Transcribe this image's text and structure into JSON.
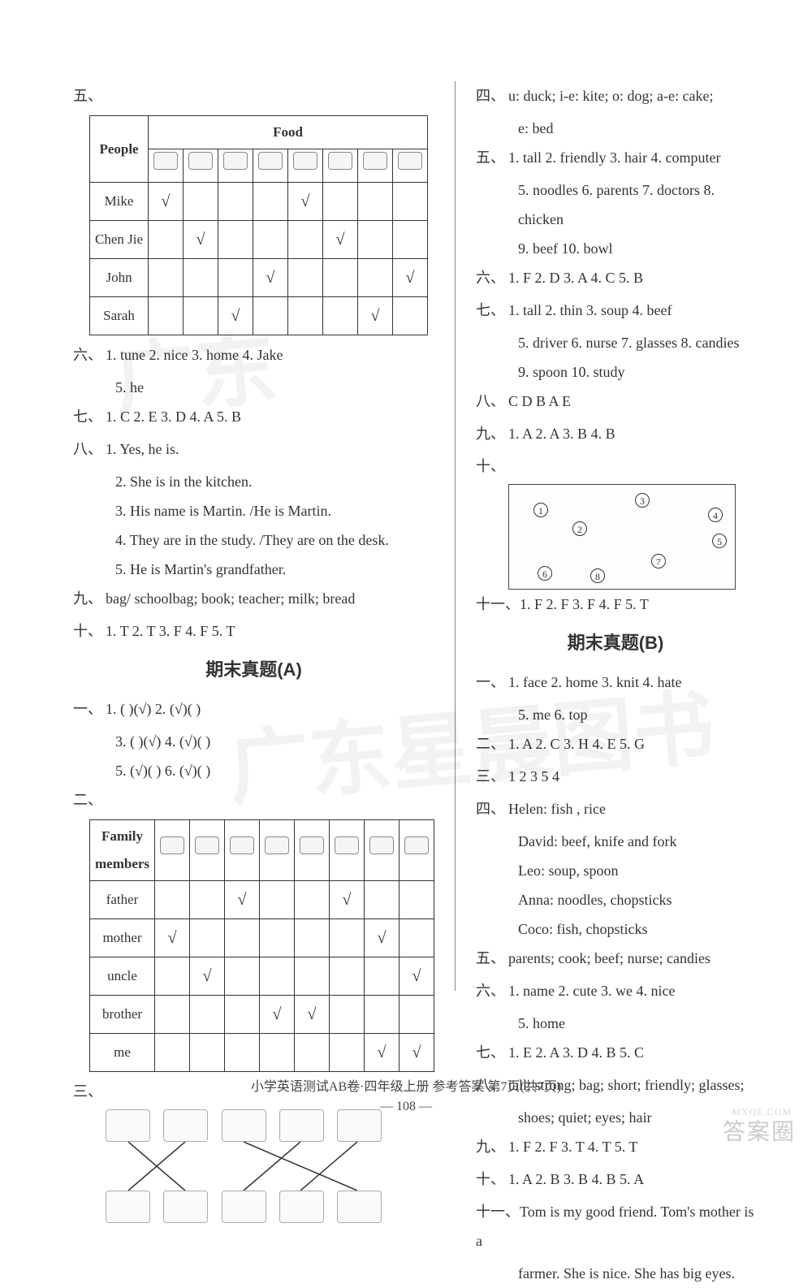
{
  "left": {
    "s5_label": "五、",
    "table1": {
      "header_people": "People",
      "header_food": "Food",
      "rows": [
        "Mike",
        "Chen Jie",
        "John",
        "Sarah"
      ],
      "checks": [
        [
          true,
          false,
          false,
          false,
          true,
          false,
          false,
          false
        ],
        [
          false,
          true,
          false,
          false,
          false,
          true,
          false,
          false
        ],
        [
          false,
          false,
          false,
          true,
          false,
          false,
          false,
          true
        ],
        [
          false,
          false,
          true,
          false,
          false,
          false,
          true,
          false
        ]
      ]
    },
    "s6_label": "六、",
    "s6_line1": "1. tune  2. nice  3. home  4. Jake",
    "s6_line2": "5. he",
    "s7_label": "七、",
    "s7_text": "1. C  2. E  3. D  4. A  5. B",
    "s8_label": "八、",
    "s8_1": "1. Yes, he is.",
    "s8_2": "2. She is in the kitchen.",
    "s8_3": "3. His name is Martin. /He is Martin.",
    "s8_4": "4. They are in the study. /They are on the desk.",
    "s8_5": "5. He is Martin's grandfather.",
    "s9_label": "九、",
    "s9_text": "bag/ schoolbag; book; teacher; milk; bread",
    "s10_label": "十、",
    "s10_text": "1. T  2. T  3. F  4. F  5. T",
    "titleA": "期末真题(A)",
    "a1_label": "一、",
    "a1_l1": "1. (  )(√)  2. (√)(  )",
    "a1_l2": "3. (  )(√)  4. (√)(  )",
    "a1_l3": "5. (√)(  )  6. (√)(  )",
    "a2_label": "二、",
    "table2": {
      "header": "Family members",
      "rows": [
        "father",
        "mother",
        "uncle",
        "brother",
        "me"
      ],
      "checks": [
        [
          false,
          false,
          true,
          false,
          false,
          true,
          false,
          false
        ],
        [
          true,
          false,
          false,
          false,
          false,
          false,
          true,
          false
        ],
        [
          false,
          true,
          false,
          false,
          false,
          false,
          false,
          true
        ],
        [
          false,
          false,
          false,
          true,
          true,
          false,
          false,
          false
        ],
        [
          false,
          false,
          false,
          false,
          false,
          false,
          true,
          true
        ]
      ]
    },
    "a3_label": "三、"
  },
  "right": {
    "s4_label": "四、",
    "s4_l1": "u: duck; i-e: kite; o: dog; a-e: cake;",
    "s4_l2": "e: bed",
    "s5_label": "五、",
    "s5_l1": "1. tall  2. friendly  3. hair  4. computer",
    "s5_l2": "5. noodles  6. parents  7. doctors  8. chicken",
    "s5_l3": "9. beef  10. bowl",
    "s6_label": "六、",
    "s6_text": "1. F  2. D  3. A  4. C  5. B",
    "s7_label": "七、",
    "s7_l1": "1. tall  2. thin  3. soup  4. beef",
    "s7_l2": "5. driver  6. nurse  7. glasses  8. candies",
    "s7_l3": "9. spoon  10. study",
    "s8_label": "八、",
    "s8_text": "C D B A E",
    "s9_label": "九、",
    "s9_text": "1. A  2. A  3. B  4. B",
    "s10_label": "十、",
    "room_nums": [
      "1",
      "2",
      "3",
      "4",
      "5",
      "6",
      "7",
      "8"
    ],
    "s11_label": "十一、",
    "s11_text": "1. F  2. F  3. F  4. F  5. T",
    "titleB": "期末真题(B)",
    "b1_label": "一、",
    "b1_l1": "1. face  2. home  3. knit  4. hate",
    "b1_l2": "5. me  6. top",
    "b2_label": "二、",
    "b2_text": "1. A  2. C  3. H  4. E  5. G",
    "b3_label": "三、",
    "b3_text": "1  2  3  5  4",
    "b4_label": "四、",
    "b4_l1": "Helen: fish , rice",
    "b4_l2": "David: beef, knife and fork",
    "b4_l3": "Leo: soup, spoon",
    "b4_l4": "Anna: noodles, chopsticks",
    "b4_l5": "Coco: fish, chopsticks",
    "b5_label": "五、",
    "b5_text": "parents; cook; beef; nurse; candies",
    "b6_label": "六、",
    "b6_l1": "1. name  2. cute  3. we  4. nice",
    "b6_l2": "5. home",
    "b7_label": "七、",
    "b7_text": "1. E  2. A  3. D  4. B  5. C",
    "b8_label": "八、",
    "b8_l1": "tall; strong; bag; short; friendly; glasses;",
    "b8_l2": "shoes; quiet; eyes; hair",
    "b9_label": "九、",
    "b9_text": "1. F  2. F  3. T  4. T  5. T",
    "b10_label": "十、",
    "b10_text": "1. A  2. B  3. B  4. B  5. A",
    "b11_label": "十一、",
    "b11_l1": "Tom is my good friend. Tom's mother is a",
    "b11_l2": "farmer. She is nice. She has big eyes."
  },
  "footer": {
    "line1": "小学英语测试AB卷·四年级上册  参考答案  第7页(共7页)",
    "line2": "— 108 —"
  },
  "corner": {
    "logo": "答案圈",
    "url": "MXQE.COM"
  }
}
